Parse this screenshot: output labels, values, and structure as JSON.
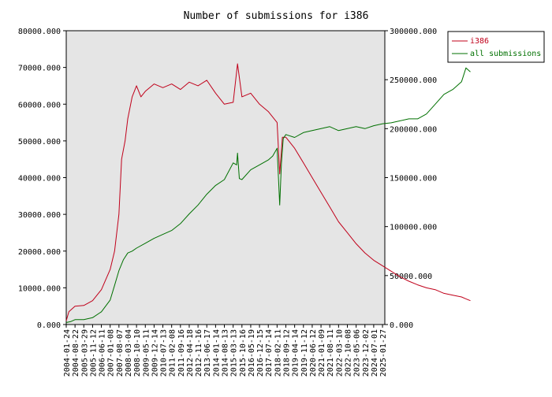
{
  "chart_data": {
    "type": "line",
    "title": "Number of submissions for i386",
    "x_tick_labels": [
      "2004-01-24",
      "2004-08-22",
      "2005-03-29",
      "2005-11-12",
      "2006-06-11",
      "2007-01-08",
      "2007-08-07",
      "2008-03-04",
      "2008-10-10",
      "2009-05-11",
      "2009-12-14",
      "2010-07-13",
      "2011-02-08",
      "2011-09-16",
      "2012-04-18",
      "2012-11-16",
      "2013-06-17",
      "2014-01-14",
      "2014-08-13",
      "2015-03-13",
      "2015-10-16",
      "2016-05-19",
      "2016-12-15",
      "2017-07-14",
      "2018-02-11",
      "2018-09-12",
      "2019-04-14",
      "2019-11-12",
      "2020-06-12",
      "2021-01-09",
      "2021-08-11",
      "2022-03-10",
      "2022-10-08",
      "2023-05-06",
      "2023-12-02",
      "2024-07-01",
      "2025-01-27"
    ],
    "y_left": {
      "ylim": [
        0,
        80000
      ],
      "ticks": [
        "0.000",
        "10000.000",
        "20000.000",
        "30000.000",
        "40000.000",
        "50000.000",
        "60000.000",
        "70000.000",
        "80000.000"
      ]
    },
    "y_right": {
      "ylim": [
        0,
        300000
      ],
      "ticks": [
        "0.000",
        "50000.000",
        "100000.000",
        "150000.000",
        "200000.000",
        "250000.000",
        "300000.000"
      ]
    },
    "grid": false,
    "legend_position": "top-right-outside",
    "series": [
      {
        "name": "i386",
        "axis": "left",
        "color": "#c0001a",
        "points": [
          [
            0,
            1000
          ],
          [
            0.3,
            3500
          ],
          [
            1,
            5000
          ],
          [
            2,
            5200
          ],
          [
            3,
            6500
          ],
          [
            4,
            9500
          ],
          [
            5,
            15000
          ],
          [
            5.5,
            20000
          ],
          [
            6,
            30000
          ],
          [
            6.3,
            45000
          ],
          [
            6.7,
            50000
          ],
          [
            7,
            56000
          ],
          [
            7.5,
            62000
          ],
          [
            8,
            65000
          ],
          [
            8.5,
            62000
          ],
          [
            9,
            63500
          ],
          [
            10,
            65500
          ],
          [
            11,
            64500
          ],
          [
            12,
            65500
          ],
          [
            13,
            64000
          ],
          [
            14,
            66000
          ],
          [
            15,
            65000
          ],
          [
            16,
            66500
          ],
          [
            17,
            63000
          ],
          [
            18,
            60000
          ],
          [
            19,
            60500
          ],
          [
            19.5,
            71000
          ],
          [
            20,
            62000
          ],
          [
            21,
            63000
          ],
          [
            22,
            60000
          ],
          [
            23,
            58000
          ],
          [
            24,
            55000
          ],
          [
            24.3,
            41000
          ],
          [
            24.6,
            51000
          ],
          [
            25,
            51000
          ],
          [
            26,
            48000
          ],
          [
            27,
            44000
          ],
          [
            28,
            40000
          ],
          [
            29,
            36000
          ],
          [
            30,
            32000
          ],
          [
            31,
            28000
          ],
          [
            32,
            25000
          ],
          [
            33,
            22000
          ],
          [
            34,
            19500
          ],
          [
            35,
            17500
          ],
          [
            36,
            16000
          ],
          [
            37,
            14500
          ],
          [
            38,
            13000
          ],
          [
            39,
            11800
          ],
          [
            40,
            10800
          ],
          [
            41,
            10000
          ],
          [
            42,
            9500
          ],
          [
            43,
            8500
          ],
          [
            44,
            8000
          ],
          [
            45,
            7500
          ],
          [
            45.5,
            7000
          ],
          [
            46,
            6500
          ]
        ]
      },
      {
        "name": "all submissions",
        "axis": "right",
        "color": "#007000",
        "points": [
          [
            0,
            2000
          ],
          [
            0.5,
            3000
          ],
          [
            1,
            5000
          ],
          [
            2,
            5000
          ],
          [
            3,
            7000
          ],
          [
            4,
            13000
          ],
          [
            5,
            25000
          ],
          [
            5.5,
            40000
          ],
          [
            6,
            55000
          ],
          [
            6.5,
            66000
          ],
          [
            7,
            73000
          ],
          [
            7.5,
            75000
          ],
          [
            8,
            78000
          ],
          [
            9,
            83000
          ],
          [
            10,
            88000
          ],
          [
            11,
            92000
          ],
          [
            12,
            96000
          ],
          [
            13,
            103000
          ],
          [
            14,
            113000
          ],
          [
            15,
            122000
          ],
          [
            16,
            133000
          ],
          [
            17,
            142000
          ],
          [
            18,
            148000
          ],
          [
            19,
            165000
          ],
          [
            19.4,
            163000
          ],
          [
            19.5,
            175000
          ],
          [
            19.7,
            149000
          ],
          [
            20,
            148000
          ],
          [
            21,
            158000
          ],
          [
            22,
            163000
          ],
          [
            23,
            168000
          ],
          [
            23.5,
            172000
          ],
          [
            24,
            180000
          ],
          [
            24.3,
            122000
          ],
          [
            24.5,
            165000
          ],
          [
            24.7,
            190000
          ],
          [
            25,
            194000
          ],
          [
            26,
            191000
          ],
          [
            27,
            196000
          ],
          [
            28,
            198000
          ],
          [
            29,
            200000
          ],
          [
            30,
            202000
          ],
          [
            31,
            198000
          ],
          [
            32,
            200000
          ],
          [
            33,
            202000
          ],
          [
            34,
            200000
          ],
          [
            35,
            203000
          ],
          [
            36,
            205000
          ],
          [
            37,
            206000
          ],
          [
            38,
            208000
          ],
          [
            39,
            210000
          ],
          [
            40,
            210000
          ],
          [
            41,
            215000
          ],
          [
            42,
            225000
          ],
          [
            43,
            235000
          ],
          [
            44,
            240000
          ],
          [
            45,
            248000
          ],
          [
            45.5,
            262000
          ],
          [
            46,
            258000
          ]
        ]
      }
    ]
  }
}
